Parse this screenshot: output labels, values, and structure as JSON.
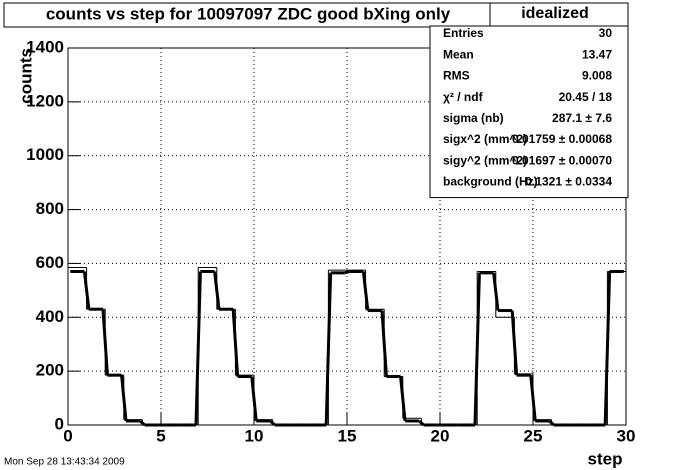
{
  "chart_data": {
    "type": "histogram",
    "title": "counts vs step for 10097097 ZDC good bXing only",
    "x_label": "step",
    "y_label": "counts",
    "bins": [
      0,
      1,
      2,
      3,
      4,
      5,
      6,
      7,
      8,
      9,
      10,
      11,
      12,
      13,
      14,
      15,
      16,
      17,
      18,
      19,
      20,
      21,
      22,
      23,
      24,
      25,
      26,
      27,
      28,
      29,
      30
    ],
    "series": [
      {
        "color": "#000000",
        "values": [
          585,
          430,
          185,
          20,
          0,
          0,
          0,
          585,
          430,
          185,
          20,
          0,
          0,
          0,
          575,
          575,
          430,
          180,
          25,
          0,
          0,
          0,
          570,
          400,
          190,
          20,
          0,
          0,
          0,
          570
        ]
      },
      {
        "color": "#000000",
        "values": [
          570,
          430,
          185,
          15,
          0,
          0,
          0,
          570,
          430,
          180,
          15,
          0,
          0,
          0,
          565,
          570,
          425,
          180,
          15,
          0,
          0,
          0,
          565,
          425,
          185,
          15,
          0,
          0,
          0,
          570
        ]
      }
    ],
    "xlim": [
      0,
      30
    ],
    "ylim": [
      0,
      1400
    ],
    "xticks": [
      0,
      5,
      10,
      15,
      20,
      25,
      30
    ],
    "yticks": [
      0,
      200,
      400,
      600,
      800,
      1000,
      1200,
      1400
    ],
    "grid": true
  },
  "stats": {
    "title": "idealized",
    "rows": [
      [
        "Entries",
        "30"
      ],
      [
        "Mean",
        "13.47"
      ],
      [
        "RMS",
        "9.008"
      ],
      [
        "χ² / ndf",
        "20.45 / 18"
      ],
      [
        "sigma (nb)",
        "287.1 ± 7.6"
      ],
      [
        "sigx^2 (mm^2)",
        "0.01759 ± 0.00068"
      ],
      [
        "sigy^2 (mm^2)",
        "0.01697 ± 0.00070"
      ],
      [
        "background (Hz)",
        "0.1321 ± 0.0334"
      ]
    ]
  },
  "footer": "Mon Sep 28 13:43:34 2009"
}
